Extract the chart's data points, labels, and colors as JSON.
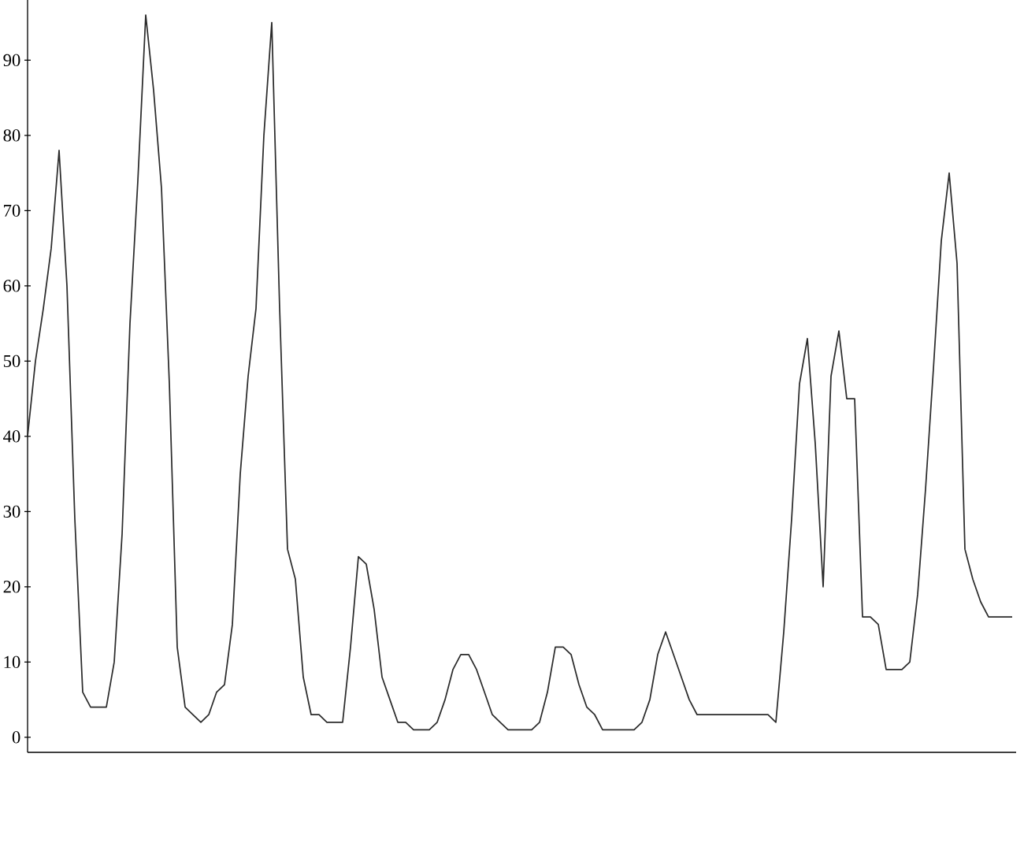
{
  "chart_data": {
    "type": "line",
    "categories": [
      null,
      null,
      null,
      null,
      null,
      null,
      null,
      null,
      null,
      null,
      null,
      null,
      null,
      null,
      null,
      null,
      null,
      null,
      null,
      null,
      null,
      null,
      null,
      null,
      null,
      null,
      null,
      null,
      null,
      null,
      null,
      null,
      null,
      null,
      null,
      null,
      null,
      null,
      null,
      null,
      null,
      null,
      null,
      null,
      null,
      null,
      null,
      null,
      null,
      null,
      null,
      null,
      null,
      null,
      null,
      null,
      null,
      null,
      null,
      null,
      null,
      null,
      null,
      null,
      null,
      null,
      null,
      null,
      null,
      null,
      null,
      null,
      null,
      null,
      null,
      null,
      null,
      null,
      null,
      null,
      null,
      null,
      null,
      null,
      null,
      null,
      null,
      null,
      null,
      null,
      null,
      null,
      null,
      null,
      null,
      null,
      null,
      null,
      null,
      null,
      null,
      null,
      null,
      null,
      null,
      null,
      null,
      null,
      null,
      null,
      null,
      null,
      null,
      null,
      null,
      null,
      null,
      null,
      null,
      null,
      null,
      null,
      null,
      null,
      null,
      null
    ],
    "values": [
      40,
      50,
      57,
      65,
      78,
      60,
      29,
      6,
      4,
      4,
      4,
      10,
      27,
      55,
      74,
      96,
      86,
      73,
      47,
      12,
      4,
      3,
      2,
      3,
      6,
      7,
      15,
      35,
      48,
      57,
      80,
      95,
      57,
      25,
      21,
      8,
      3,
      3,
      2,
      2,
      2,
      12,
      24,
      23,
      17,
      8,
      5,
      2,
      2,
      1,
      1,
      1,
      2,
      5,
      9,
      11,
      11,
      9,
      6,
      3,
      2,
      1,
      1,
      1,
      1,
      2,
      6,
      12,
      12,
      11,
      7,
      4,
      3,
      1,
      1,
      1,
      1,
      1,
      2,
      5,
      11,
      14,
      11,
      8,
      5,
      3,
      3,
      3,
      3,
      3,
      3,
      3,
      3,
      3,
      3,
      2,
      14,
      29,
      47,
      53,
      39,
      20,
      48,
      54,
      45,
      45,
      16,
      16,
      15,
      9,
      9,
      9,
      10,
      19,
      33,
      49,
      66,
      75,
      63,
      25,
      21,
      18,
      16,
      16,
      16,
      16
    ],
    "color": "#2b2b2b",
    "marker": "none",
    "line_style": "solid",
    "ylim": [
      -2,
      98
    ],
    "yticks": [
      0,
      10,
      20,
      30,
      40,
      50,
      60,
      70,
      80,
      90
    ],
    "tick_labels": "y"
  }
}
